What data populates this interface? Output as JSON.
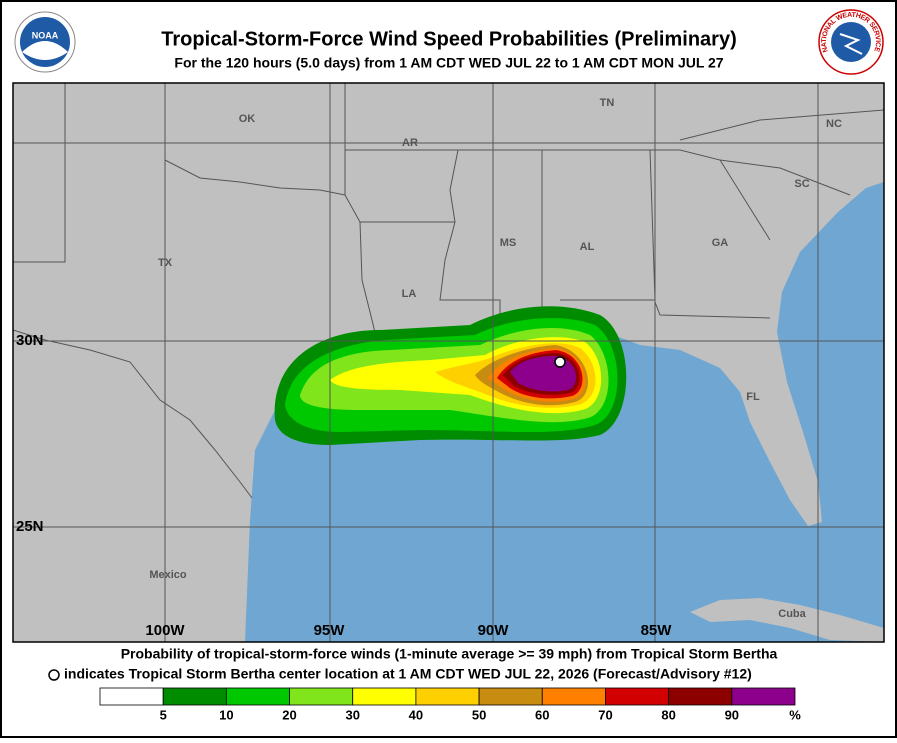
{
  "header": {
    "title": "Tropical-Storm-Force Wind Speed Probabilities (Preliminary)",
    "subtitle": "For the 120 hours (5.0 days) from 1 AM CDT WED JUL 22 to 1 AM CDT MON JUL 27",
    "noaa_logo": "NOAA",
    "nws_logo": "NATIONAL WEATHER SERVICE"
  },
  "map": {
    "labels": [
      "OK",
      "AR",
      "TN",
      "NC",
      "SC",
      "MS",
      "AL",
      "GA",
      "TX",
      "LA",
      "FL",
      "Mexico",
      "Cuba"
    ],
    "latitudes": [
      "30N",
      "25N"
    ],
    "longitudes": [
      "100W",
      "95W",
      "90W",
      "85W"
    ]
  },
  "caption": {
    "line1": "Probability of tropical-storm-force winds (1-minute average >= 39 mph) from Tropical Storm Bertha",
    "line2": "indicates Tropical Storm Bertha center location at 1 AM CDT WED JUL 22, 2026 (Forecast/Advisory #12)"
  },
  "legend": {
    "colors": [
      "#ffffff",
      "#008c00",
      "#00c800",
      "#80e51a",
      "#ffff00",
      "#ffd000",
      "#c88c10",
      "#ff8000",
      "#d20000",
      "#8c0000",
      "#8c008c"
    ],
    "labels": [
      "5",
      "10",
      "20",
      "30",
      "40",
      "50",
      "60",
      "70",
      "80",
      "90",
      "%"
    ]
  }
}
